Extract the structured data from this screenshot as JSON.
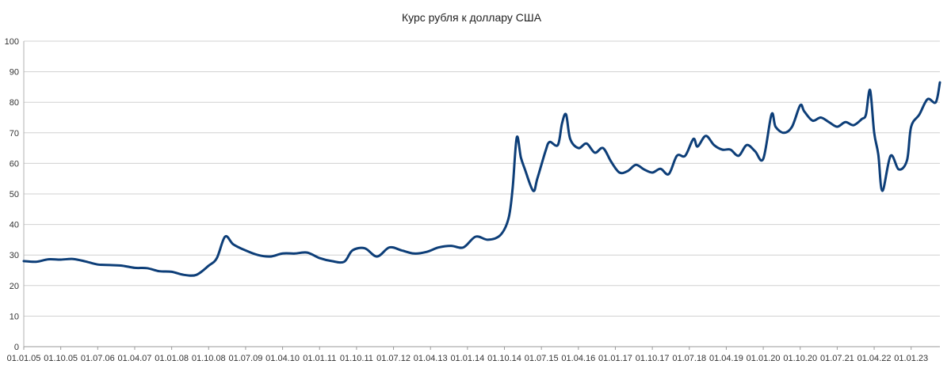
{
  "chart_data": {
    "type": "line",
    "title": "Курс рубля к доллару США",
    "xlabel": "",
    "ylabel": "",
    "ylim": [
      0,
      100
    ],
    "yticks": [
      0,
      10,
      20,
      30,
      40,
      50,
      60,
      70,
      80,
      90,
      100
    ],
    "grid": true,
    "legend": "none",
    "line_color": "#0d3e78",
    "x_tick_labels": [
      "01.01.05",
      "01.10.05",
      "01.07.06",
      "01.04.07",
      "01.01.08",
      "01.10.08",
      "01.07.09",
      "01.04.10",
      "01.01.11",
      "01.10.11",
      "01.07.12",
      "01.04.13",
      "01.01.14",
      "01.10.14",
      "01.07.15",
      "01.04.16",
      "01.01.17",
      "01.10.17",
      "01.07.18",
      "01.04.19",
      "01.01.20",
      "01.10.20",
      "01.07.21",
      "01.04.22",
      "01.01.23"
    ],
    "x": [
      "01.01.05",
      "01.04.05",
      "01.07.05",
      "01.10.05",
      "01.01.06",
      "01.04.06",
      "01.07.06",
      "01.10.06",
      "01.01.07",
      "01.04.07",
      "01.07.07",
      "01.10.07",
      "01.01.08",
      "01.04.08",
      "01.07.08",
      "01.10.08",
      "01.12.08",
      "01.02.09",
      "01.04.09",
      "01.07.09",
      "01.10.09",
      "01.01.10",
      "01.04.10",
      "01.07.10",
      "01.10.10",
      "01.01.11",
      "01.04.11",
      "01.07.11",
      "01.09.11",
      "01.12.11",
      "01.03.12",
      "01.06.12",
      "01.09.12",
      "01.12.12",
      "01.03.13",
      "01.06.13",
      "01.09.13",
      "01.12.13",
      "01.03.14",
      "01.06.14",
      "01.09.14",
      "01.11.14",
      "01.12.14",
      "01.01.15",
      "01.02.15",
      "01.03.15",
      "01.05.15",
      "01.06.15",
      "01.08.15",
      "01.09.15",
      "01.11.15",
      "01.12.15",
      "01.01.16",
      "01.02.16",
      "01.04.16",
      "01.06.16",
      "01.08.16",
      "01.10.16",
      "01.12.16",
      "01.02.17",
      "01.04.17",
      "01.06.17",
      "01.08.17",
      "01.10.17",
      "01.12.17",
      "01.02.18",
      "01.04.18",
      "01.06.18",
      "01.08.18",
      "01.09.18",
      "01.11.18",
      "01.01.19",
      "01.03.19",
      "01.05.19",
      "01.07.19",
      "01.09.19",
      "01.11.19",
      "01.01.20",
      "01.03.20",
      "01.04.20",
      "01.06.20",
      "01.08.20",
      "01.10.20",
      "01.11.20",
      "01.01.21",
      "01.03.21",
      "01.05.21",
      "01.07.21",
      "01.09.21",
      "01.11.21",
      "01.01.22",
      "01.02.22",
      "01.03.22",
      "01.04.22",
      "01.05.22",
      "01.06.22",
      "01.08.22",
      "01.10.22",
      "01.12.22",
      "01.01.23",
      "01.03.23",
      "01.05.23",
      "01.07.23",
      "01.08.23"
    ],
    "series": [
      {
        "name": "",
        "values": [
          28,
          27.8,
          28.6,
          28.5,
          28.7,
          27.9,
          26.9,
          26.7,
          26.5,
          25.8,
          25.7,
          24.7,
          24.5,
          23.5,
          23.5,
          26.5,
          29,
          36,
          33.5,
          31.5,
          30,
          29.5,
          30.5,
          30.5,
          30.8,
          29,
          28,
          27.8,
          31.5,
          32.2,
          29.5,
          32.5,
          31.5,
          30.5,
          31,
          32.5,
          33,
          32.5,
          36,
          35,
          36.5,
          42,
          52,
          68.5,
          62,
          58,
          51,
          55,
          64,
          67,
          66,
          73,
          76,
          68,
          65,
          66.5,
          63.5,
          65,
          60.5,
          57,
          57.5,
          59.5,
          58,
          57,
          58.2,
          56.5,
          62.5,
          62.5,
          68,
          65.5,
          69,
          66,
          64.5,
          64.5,
          62.5,
          66,
          64,
          61.5,
          76,
          72,
          70,
          72,
          79,
          77,
          74,
          75,
          73.5,
          72,
          73.5,
          72.5,
          74.5,
          76,
          84,
          70,
          63,
          51,
          62.5,
          58,
          61,
          72,
          76,
          81,
          80,
          86.5
        ]
      }
    ]
  }
}
